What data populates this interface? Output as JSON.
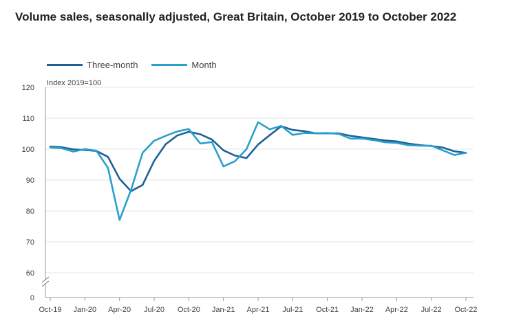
{
  "chart_data": {
    "type": "line",
    "title": "Volume sales, seasonally adjusted, Great Britain, October 2019 to October 2022",
    "ylabel": "Index 2019=100",
    "ylim": [
      0,
      120
    ],
    "y_ticks": [
      0,
      60,
      70,
      80,
      90,
      100,
      110,
      120
    ],
    "axis_break": true,
    "grid": true,
    "legend_position": "top-left",
    "x": [
      "Oct-19",
      "Nov-19",
      "Dec-19",
      "Jan-20",
      "Feb-20",
      "Mar-20",
      "Apr-20",
      "May-20",
      "Jun-20",
      "Jul-20",
      "Aug-20",
      "Sep-20",
      "Oct-20",
      "Nov-20",
      "Dec-20",
      "Jan-21",
      "Feb-21",
      "Mar-21",
      "Apr-21",
      "May-21",
      "Jun-21",
      "Jul-21",
      "Aug-21",
      "Sep-21",
      "Oct-21",
      "Nov-21",
      "Dec-21",
      "Jan-22",
      "Feb-22",
      "Mar-22",
      "Apr-22",
      "May-22",
      "Jun-22",
      "Jul-22",
      "Aug-22",
      "Sep-22",
      "Oct-22"
    ],
    "x_tick_labels": [
      "Oct-19",
      "Jan-20",
      "Apr-20",
      "Jul-20",
      "Oct-20",
      "Jan-21",
      "Apr-21",
      "Jul-21",
      "Oct-21",
      "Jan-22",
      "Apr-22",
      "Jul-22",
      "Oct-22"
    ],
    "series": [
      {
        "name": "Three-month",
        "color": "#206095",
        "values": [
          100.8,
          100.6,
          99.9,
          99.7,
          99.4,
          97.5,
          90.4,
          86.4,
          88.4,
          96.2,
          101.6,
          104.4,
          105.6,
          104.8,
          103.1,
          99.6,
          97.9,
          97.1,
          101.5,
          104.5,
          107.4,
          106.2,
          105.8,
          105.1,
          105.1,
          105.1,
          104.3,
          103.8,
          103.3,
          102.8,
          102.5,
          101.8,
          101.3,
          101.0,
          100.5,
          99.3,
          98.8
        ]
      },
      {
        "name": "Month",
        "color": "#27a0cc",
        "values": [
          100.5,
          100.3,
          99.2,
          100.0,
          99.5,
          93.9,
          77.1,
          86.8,
          98.8,
          102.7,
          104.3,
          105.7,
          106.5,
          101.8,
          102.3,
          94.4,
          96.1,
          100.0,
          108.7,
          106.4,
          107.5,
          104.6,
          105.2,
          105.1,
          105.2,
          104.9,
          103.4,
          103.4,
          102.9,
          102.2,
          102.0,
          101.3,
          101.1,
          101.1,
          99.6,
          98.1,
          98.8
        ]
      }
    ]
  }
}
